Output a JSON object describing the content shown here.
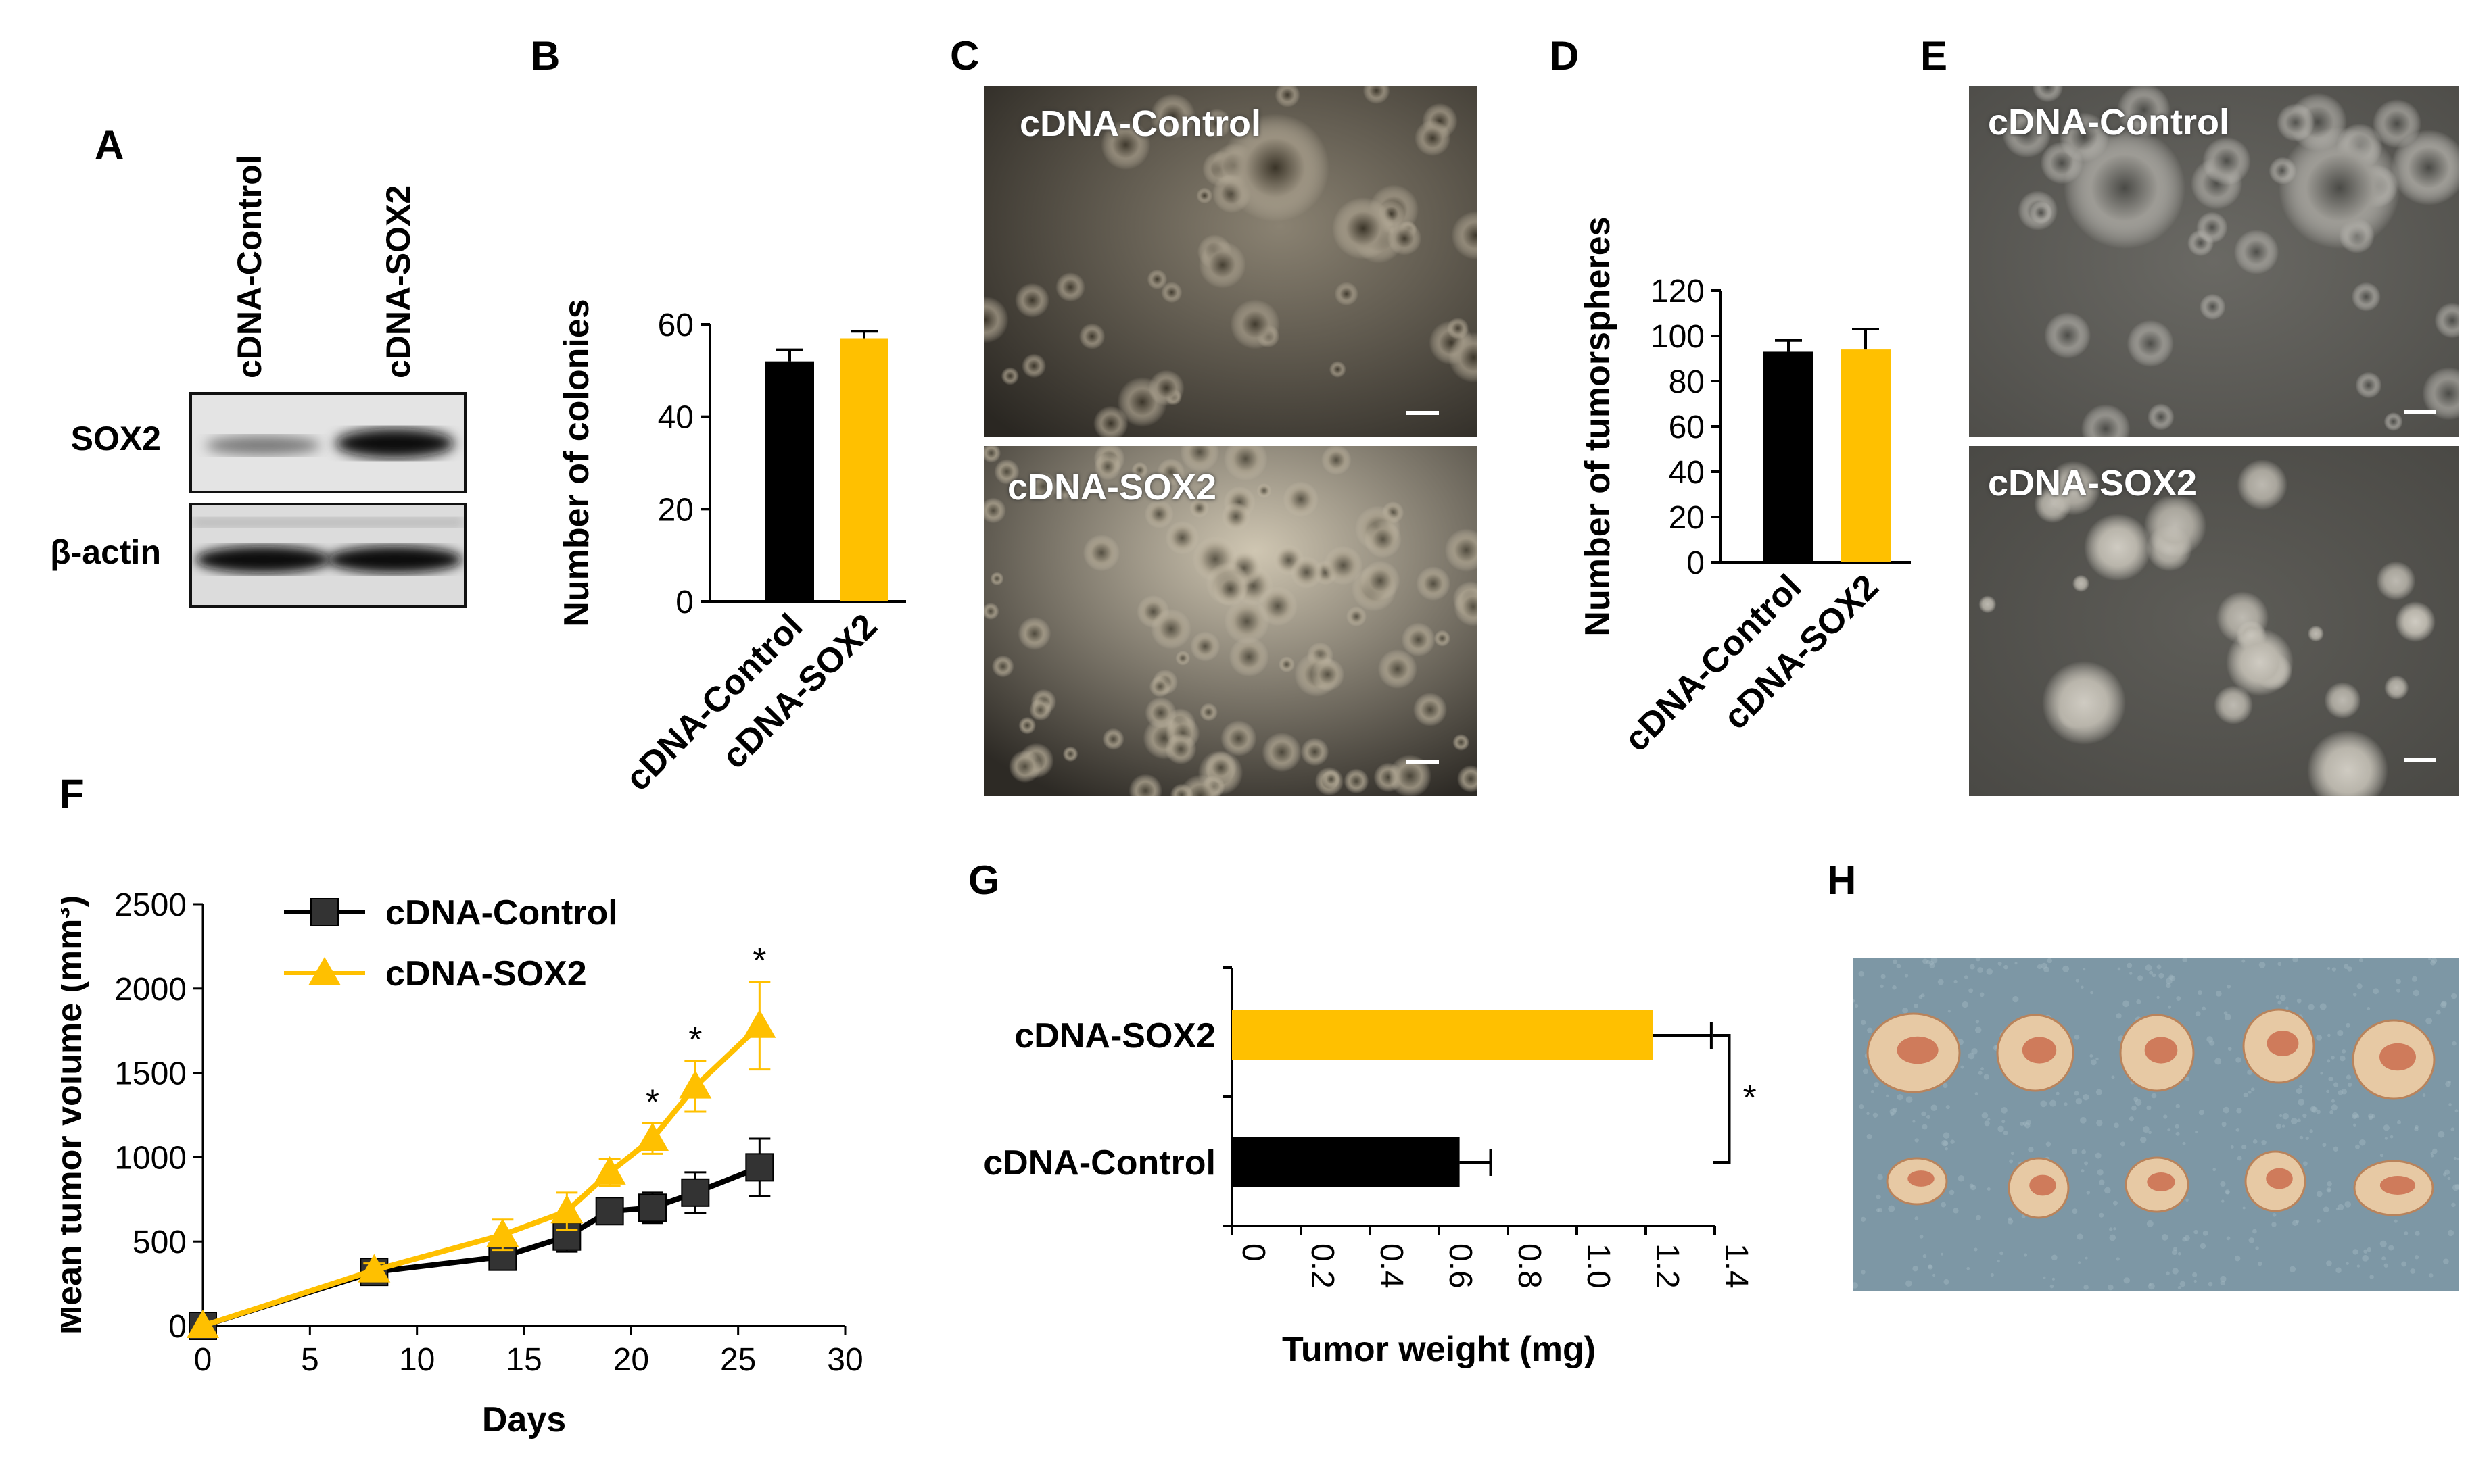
{
  "panels": {
    "A": "A",
    "B": "B",
    "C": "C",
    "D": "D",
    "E": "E",
    "F": "F",
    "G": "G",
    "H": "H"
  },
  "panel_a": {
    "lane_labels": [
      "cDNA-Control",
      "cDNA-SOX2"
    ],
    "row_labels": [
      "SOX2",
      "β-actin"
    ]
  },
  "panel_c": {
    "top_label": "cDNA-Control",
    "bottom_label": "cDNA-SOX2"
  },
  "panel_e": {
    "top_label": "cDNA-Control",
    "bottom_label": "cDNA-SOX2"
  },
  "chart_data": [
    {
      "panel": "B",
      "type": "bar",
      "categories": [
        "cDNA-Control",
        "cDNA-SOX2"
      ],
      "values": [
        52,
        57
      ],
      "errors": [
        2.5,
        1.5
      ],
      "colors": [
        "#000000",
        "#FFC000"
      ],
      "ylabel": "Number of colonies",
      "ylim": [
        0,
        60
      ],
      "yticks": [
        0,
        20,
        40,
        60
      ]
    },
    {
      "panel": "D",
      "type": "bar",
      "categories": [
        "cDNA-Control",
        "cDNA-SOX2"
      ],
      "values": [
        93,
        94
      ],
      "errors": [
        5,
        9
      ],
      "colors": [
        "#000000",
        "#FFC000"
      ],
      "ylabel": "Number of tumorspheres",
      "ylim": [
        0,
        120
      ],
      "yticks": [
        0,
        20,
        40,
        60,
        80,
        100,
        120
      ]
    },
    {
      "panel": "F",
      "type": "line",
      "xlabel": "Days",
      "ylabel": "Mean tumor volume (mm³)",
      "xlim": [
        0,
        30
      ],
      "xticks": [
        0,
        5,
        10,
        15,
        20,
        25,
        30
      ],
      "ylim": [
        0,
        2500
      ],
      "yticks": [
        0,
        500,
        1000,
        1500,
        2000,
        2500
      ],
      "legend_position": "top-left",
      "series": [
        {
          "name": "cDNA-Control",
          "color": "#000000",
          "marker": "square",
          "x": [
            0,
            8,
            14,
            17,
            19,
            21,
            23,
            26
          ],
          "y": [
            0,
            320,
            410,
            530,
            680,
            700,
            790,
            940
          ],
          "err": [
            0,
            40,
            70,
            90,
            70,
            90,
            120,
            170
          ]
        },
        {
          "name": "cDNA-SOX2",
          "color": "#FFC000",
          "marker": "triangle",
          "x": [
            0,
            8,
            14,
            17,
            19,
            21,
            23,
            26
          ],
          "y": [
            0,
            330,
            540,
            680,
            910,
            1110,
            1420,
            1780
          ],
          "err": [
            0,
            40,
            90,
            110,
            80,
            90,
            150,
            260
          ]
        }
      ],
      "annotations": [
        {
          "x": 21,
          "text": "*"
        },
        {
          "x": 23,
          "text": "*"
        },
        {
          "x": 26,
          "text": "*"
        }
      ]
    },
    {
      "panel": "G",
      "type": "bar",
      "orientation": "horizontal",
      "categories": [
        "cDNA-SOX2",
        "cDNA-Control"
      ],
      "values": [
        1.22,
        0.66
      ],
      "errors": [
        0.17,
        0.09
      ],
      "colors": [
        "#FFC000",
        "#000000"
      ],
      "xlabel": "Tumor weight (mg)",
      "xlim": [
        0,
        1.4
      ],
      "xticks": [
        "0",
        "0.2",
        "0.4",
        "0.6",
        "0.8",
        "1.0",
        "1.2",
        "1.4"
      ],
      "significance": "*"
    }
  ]
}
